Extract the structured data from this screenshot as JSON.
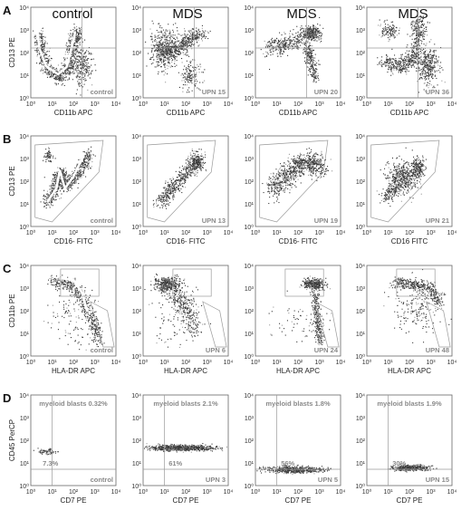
{
  "column_headers": [
    "control",
    "MDS",
    "MDS",
    "MDS"
  ],
  "colors": {
    "dot": "#3a3a3a",
    "dense": "#9a9a9a",
    "gate": "#9a9a9a",
    "trace": "#ffffff",
    "axis": "#666666",
    "label_gray": "#8a8a8a"
  },
  "chart_data": [
    {
      "type": "scatter",
      "panel": "A",
      "column": 0,
      "ylabel": "CD13 PE",
      "xlabel": "CD11b APC",
      "corner_label": "control",
      "xlim": [
        1,
        10000
      ],
      "ylim": [
        1,
        10000
      ],
      "xscale": "log",
      "yscale": "log",
      "x_ticks": [
        "10⁰",
        "10¹",
        "10²",
        "10³",
        "10⁴"
      ],
      "y_ticks": [
        "10⁰",
        "10¹",
        "10²",
        "10³",
        "10⁴"
      ],
      "annotations": [],
      "trace": "U-shaped maturation pattern"
    },
    {
      "type": "scatter",
      "panel": "A",
      "column": 1,
      "ylabel": "",
      "xlabel": "CD11b APC",
      "corner_label": "UPN 15",
      "xlim": [
        1,
        10000
      ],
      "ylim": [
        1,
        10000
      ],
      "xscale": "log",
      "yscale": "log",
      "x_ticks": [
        "10⁰",
        "10¹",
        "10²",
        "10³",
        "10⁴"
      ],
      "y_ticks": [
        "10⁰",
        "10¹",
        "10²",
        "10³",
        "10⁴"
      ],
      "annotations": []
    },
    {
      "type": "scatter",
      "panel": "A",
      "column": 2,
      "ylabel": "",
      "xlabel": "CD11b APC",
      "corner_label": "UPN 20",
      "xlim": [
        1,
        10000
      ],
      "ylim": [
        1,
        10000
      ],
      "xscale": "log",
      "yscale": "log",
      "x_ticks": [
        "10⁰",
        "10¹",
        "10²",
        "10³",
        "10⁴"
      ],
      "y_ticks": [
        "10⁰",
        "10¹",
        "10²",
        "10³",
        "10⁴"
      ],
      "annotations": []
    },
    {
      "type": "scatter",
      "panel": "A",
      "column": 3,
      "ylabel": "",
      "xlabel": "CD11b APC",
      "corner_label": "UPN 36",
      "xlim": [
        1,
        10000
      ],
      "ylim": [
        1,
        10000
      ],
      "xscale": "log",
      "yscale": "log",
      "x_ticks": [
        "10⁰",
        "10¹",
        "10²",
        "10³",
        "10⁴"
      ],
      "y_ticks": [
        "10⁰",
        "10¹",
        "10²",
        "10³",
        "10⁴"
      ],
      "annotations": []
    },
    {
      "type": "scatter",
      "panel": "B",
      "column": 0,
      "ylabel": "CD13 PE",
      "xlabel": "CD16- FITC",
      "corner_label": "control",
      "xlim": [
        1,
        10000
      ],
      "ylim": [
        1,
        10000
      ],
      "xscale": "log",
      "yscale": "log",
      "x_ticks": [
        "10⁰",
        "10¹",
        "10²",
        "10³",
        "10⁴"
      ],
      "y_ticks": [
        "10⁰",
        "10¹",
        "10²",
        "10³",
        "10⁴"
      ],
      "annotations": [],
      "trace": "V-shaped maturation pattern"
    },
    {
      "type": "scatter",
      "panel": "B",
      "column": 1,
      "ylabel": "",
      "xlabel": "CD16- FITC",
      "corner_label": "UPN 13",
      "xlim": [
        1,
        10000
      ],
      "ylim": [
        1,
        10000
      ],
      "xscale": "log",
      "yscale": "log",
      "x_ticks": [
        "10⁰",
        "10¹",
        "10²",
        "10³",
        "10⁴"
      ],
      "y_ticks": [
        "10⁰",
        "10¹",
        "10²",
        "10³",
        "10⁴"
      ],
      "annotations": []
    },
    {
      "type": "scatter",
      "panel": "B",
      "column": 2,
      "ylabel": "",
      "xlabel": "CD16- FITC",
      "corner_label": "UPN 19",
      "xlim": [
        1,
        10000
      ],
      "ylim": [
        1,
        10000
      ],
      "xscale": "log",
      "yscale": "log",
      "x_ticks": [
        "10⁰",
        "10¹",
        "10²",
        "10³",
        "10⁴"
      ],
      "y_ticks": [
        "10⁰",
        "10¹",
        "10²",
        "10³",
        "10⁴"
      ],
      "annotations": []
    },
    {
      "type": "scatter",
      "panel": "B",
      "column": 3,
      "ylabel": "",
      "xlabel": "CD16 FITC",
      "corner_label": "UPN 21",
      "xlim": [
        1,
        10000
      ],
      "ylim": [
        1,
        10000
      ],
      "xscale": "log",
      "yscale": "log",
      "x_ticks": [
        "10⁰",
        "10¹",
        "10²",
        "10³",
        "10⁴"
      ],
      "y_ticks": [
        "10⁰",
        "10¹",
        "10²",
        "10³",
        "10⁴"
      ],
      "annotations": []
    },
    {
      "type": "scatter",
      "panel": "C",
      "column": 0,
      "ylabel": "CD11b PE",
      "xlabel": "HLA-DR APC",
      "corner_label": "control",
      "xlim": [
        1,
        10000
      ],
      "ylim": [
        1,
        10000
      ],
      "xscale": "log",
      "yscale": "log",
      "x_ticks": [
        "10⁰",
        "10¹",
        "10²",
        "10³",
        "10⁴"
      ],
      "y_ticks": [
        "10⁰",
        "10¹",
        "10²",
        "10³",
        "10⁴"
      ],
      "annotations": [],
      "trace": "arc maturation pattern"
    },
    {
      "type": "scatter",
      "panel": "C",
      "column": 1,
      "ylabel": "",
      "xlabel": "HLA-DR APC",
      "corner_label": "UPN 6",
      "xlim": [
        1,
        10000
      ],
      "ylim": [
        1,
        10000
      ],
      "xscale": "log",
      "yscale": "log",
      "x_ticks": [
        "10⁰",
        "10¹",
        "10²",
        "10³",
        "10⁴"
      ],
      "y_ticks": [
        "10⁰",
        "10¹",
        "10²",
        "10³",
        "10⁴"
      ],
      "annotations": []
    },
    {
      "type": "scatter",
      "panel": "C",
      "column": 2,
      "ylabel": "",
      "xlabel": "HLA-DR APC",
      "corner_label": "UPN 24",
      "xlim": [
        1,
        10000
      ],
      "ylim": [
        1,
        10000
      ],
      "xscale": "log",
      "yscale": "log",
      "x_ticks": [
        "10⁰",
        "10¹",
        "10²",
        "10³",
        "10⁴"
      ],
      "y_ticks": [
        "10⁰",
        "10¹",
        "10²",
        "10³",
        "10⁴"
      ],
      "annotations": []
    },
    {
      "type": "scatter",
      "panel": "C",
      "column": 3,
      "ylabel": "",
      "xlabel": "HLA-DR APC",
      "corner_label": "UPN 48",
      "xlim": [
        1,
        10000
      ],
      "ylim": [
        1,
        10000
      ],
      "xscale": "log",
      "yscale": "log",
      "x_ticks": [
        "10⁰",
        "10¹",
        "10²",
        "10³",
        "10⁴"
      ],
      "y_ticks": [
        "10⁰",
        "10¹",
        "10²",
        "10³",
        "10⁴"
      ],
      "annotations": []
    },
    {
      "type": "scatter",
      "panel": "D",
      "column": 0,
      "ylabel": "CD45 PerCP",
      "xlabel": "CD7 PE",
      "corner_label": "control",
      "xlim": [
        1,
        10000
      ],
      "ylim": [
        1,
        10000
      ],
      "xscale": "log",
      "yscale": "log",
      "x_ticks": [
        "10⁰",
        "10¹",
        "10²",
        "10³",
        "10⁴"
      ],
      "y_ticks": [
        "10⁰",
        "10¹",
        "10²",
        "10³",
        "10⁴"
      ],
      "annotations": [
        {
          "text": "myeloid blasts  0.32%",
          "kind": "blast_fraction"
        },
        {
          "text": "7.3%",
          "kind": "quadrant_percent"
        }
      ]
    },
    {
      "type": "scatter",
      "panel": "D",
      "column": 1,
      "ylabel": "",
      "xlabel": "CD7 PE",
      "corner_label": "UPN 3",
      "xlim": [
        1,
        10000
      ],
      "ylim": [
        1,
        10000
      ],
      "xscale": "log",
      "yscale": "log",
      "x_ticks": [
        "10⁰",
        "10¹",
        "10²",
        "10³",
        "10⁴"
      ],
      "y_ticks": [
        "10⁰",
        "10¹",
        "10²",
        "10³",
        "10⁴"
      ],
      "annotations": [
        {
          "text": "myeloid blasts  2.1%",
          "kind": "blast_fraction"
        },
        {
          "text": "61%",
          "kind": "quadrant_percent"
        }
      ]
    },
    {
      "type": "scatter",
      "panel": "D",
      "column": 2,
      "ylabel": "",
      "xlabel": "CD7 PE",
      "corner_label": "UPN 5",
      "xlim": [
        1,
        10000
      ],
      "ylim": [
        1,
        10000
      ],
      "xscale": "log",
      "yscale": "log",
      "x_ticks": [
        "10⁰",
        "10¹",
        "10²",
        "10³",
        "10⁴"
      ],
      "y_ticks": [
        "10⁰",
        "10¹",
        "10²",
        "10³",
        "10⁴"
      ],
      "annotations": [
        {
          "text": "myeloid blasts  1.8%",
          "kind": "blast_fraction"
        },
        {
          "text": "56%",
          "kind": "quadrant_percent"
        }
      ]
    },
    {
      "type": "scatter",
      "panel": "D",
      "column": 3,
      "ylabel": "",
      "xlabel": "CD7 PE",
      "corner_label": "UPN 15",
      "xlim": [
        1,
        10000
      ],
      "ylim": [
        1,
        10000
      ],
      "xscale": "log",
      "yscale": "log",
      "x_ticks": [
        "10⁰",
        "10¹",
        "10²",
        "10³",
        "10⁴"
      ],
      "y_ticks": [
        "10⁰",
        "10¹",
        "10²",
        "10³",
        "10⁴"
      ],
      "annotations": [
        {
          "text": "myeloid blasts  1.9%",
          "kind": "blast_fraction"
        },
        {
          "text": "30%",
          "kind": "quadrant_percent"
        }
      ]
    }
  ],
  "row_labels": [
    "A",
    "B",
    "C",
    "D"
  ]
}
